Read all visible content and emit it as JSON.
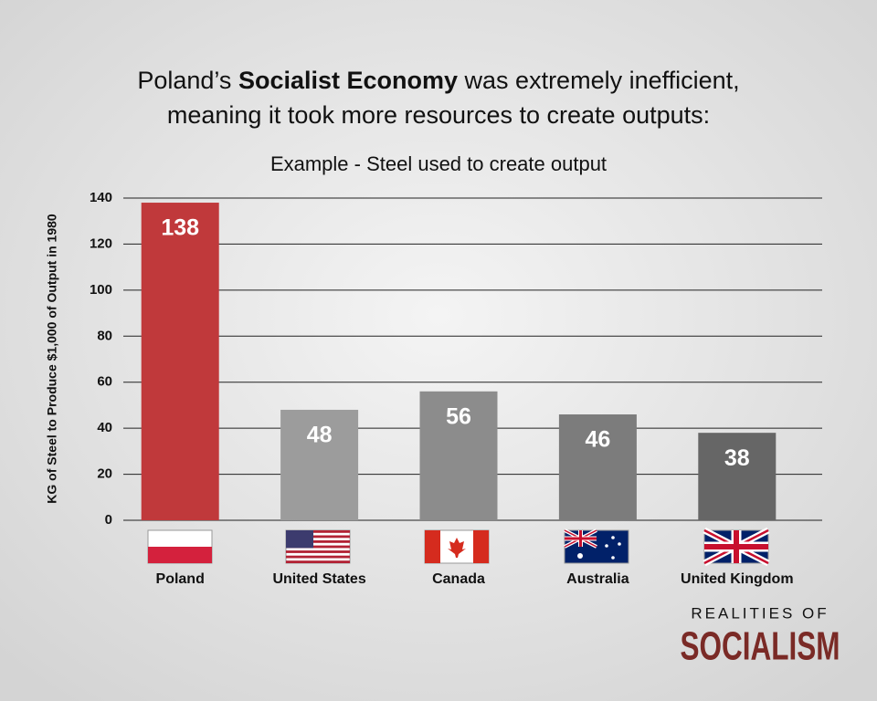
{
  "chart_data": {
    "type": "bar",
    "title": {
      "start": "Poland’s",
      "bold": "Socialist Economy",
      "end": "was extremely inefficient,",
      "line2": "meaning it took more resources to create outputs:"
    },
    "subtitle": "Example - Steel used to create output",
    "y_label": "KG of Steel to Produce $1,000 of Output in 1980",
    "categories": [
      "Poland",
      "United States",
      "Canada",
      "Australia",
      "United Kingdom"
    ],
    "values": [
      138,
      48,
      56,
      46,
      38
    ],
    "colors": [
      "#c0393b",
      "#9c9c9c",
      "#8c8c8c",
      "#7c7c7c",
      "#666666"
    ],
    "ylim": [
      0,
      140
    ],
    "yticks": [
      0,
      20,
      40,
      60,
      80,
      100,
      120,
      140
    ],
    "grid": true
  },
  "branding": {
    "line1": "REALITIES OF",
    "line2": "SOCIALISM"
  }
}
